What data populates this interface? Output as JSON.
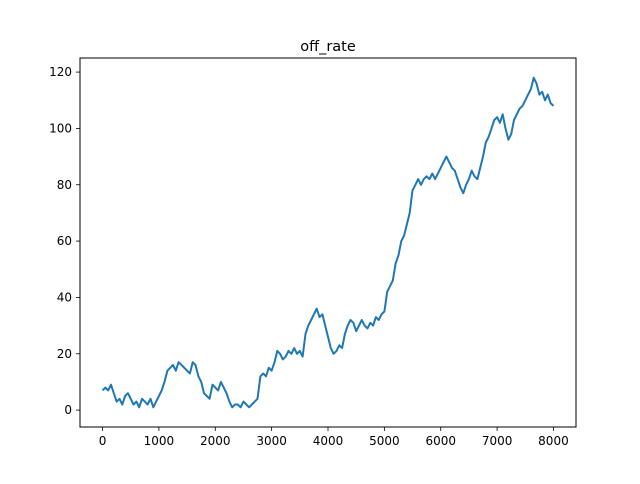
{
  "chart_data": {
    "type": "line",
    "title": "off_rate",
    "xlabel": "",
    "ylabel": "",
    "xlim": [
      -400,
      8400
    ],
    "ylim": [
      -6,
      125
    ],
    "x_ticks": [
      0,
      1000,
      2000,
      3000,
      4000,
      5000,
      6000,
      7000,
      8000
    ],
    "y_ticks": [
      0,
      20,
      40,
      60,
      80,
      100,
      120
    ],
    "x_tick_labels": [
      "0",
      "1000",
      "2000",
      "3000",
      "4000",
      "5000",
      "6000",
      "7000",
      "8000"
    ],
    "y_tick_labels": [
      "0",
      "20",
      "40",
      "60",
      "80",
      "100",
      "120"
    ],
    "grid": false,
    "legend": "none",
    "series": [
      {
        "color": "#1f77b4",
        "x": [
          0,
          50,
          100,
          150,
          200,
          250,
          300,
          350,
          400,
          450,
          500,
          550,
          600,
          650,
          700,
          750,
          800,
          850,
          900,
          950,
          1000,
          1050,
          1100,
          1150,
          1200,
          1250,
          1300,
          1350,
          1400,
          1450,
          1500,
          1550,
          1600,
          1650,
          1700,
          1750,
          1800,
          1850,
          1900,
          1950,
          2000,
          2050,
          2100,
          2150,
          2200,
          2250,
          2300,
          2350,
          2400,
          2450,
          2500,
          2550,
          2600,
          2650,
          2700,
          2750,
          2800,
          2850,
          2900,
          2950,
          3000,
          3050,
          3100,
          3150,
          3200,
          3250,
          3300,
          3350,
          3400,
          3450,
          3500,
          3550,
          3600,
          3650,
          3700,
          3750,
          3800,
          3850,
          3900,
          3950,
          4000,
          4050,
          4100,
          4150,
          4200,
          4250,
          4300,
          4350,
          4400,
          4450,
          4500,
          4550,
          4600,
          4650,
          4700,
          4750,
          4800,
          4850,
          4900,
          4950,
          5000,
          5050,
          5100,
          5150,
          5200,
          5250,
          5300,
          5350,
          5400,
          5450,
          5500,
          5550,
          5600,
          5650,
          5700,
          5750,
          5800,
          5850,
          5900,
          5950,
          6000,
          6050,
          6100,
          6150,
          6200,
          6250,
          6300,
          6350,
          6400,
          6450,
          6500,
          6550,
          6600,
          6650,
          6700,
          6750,
          6800,
          6850,
          6900,
          6950,
          7000,
          7050,
          7100,
          7150,
          7200,
          7250,
          7300,
          7350,
          7400,
          7450,
          7500,
          7550,
          7600,
          7650,
          7700,
          7750,
          7800,
          7850,
          7900,
          7950,
          8000
        ],
        "values": [
          7,
          8,
          7,
          9,
          6,
          3,
          4,
          2,
          5,
          6,
          4,
          2,
          3,
          1,
          4,
          3,
          2,
          4,
          1,
          3,
          5,
          7,
          10,
          14,
          15,
          16,
          14,
          17,
          16,
          15,
          14,
          13,
          17,
          16,
          12,
          10,
          6,
          5,
          4,
          9,
          8,
          7,
          10,
          8,
          6,
          3,
          1,
          2,
          2,
          1,
          3,
          2,
          1,
          2,
          3,
          4,
          12,
          13,
          12,
          15,
          14,
          17,
          21,
          20,
          18,
          19,
          21,
          20,
          22,
          20,
          21,
          19,
          27,
          30,
          32,
          34,
          36,
          33,
          34,
          30,
          26,
          22,
          20,
          21,
          23,
          22,
          27,
          30,
          32,
          31,
          28,
          30,
          32,
          30,
          29,
          31,
          30,
          33,
          32,
          34,
          35,
          42,
          44,
          46,
          52,
          55,
          60,
          62,
          66,
          70,
          78,
          80,
          82,
          80,
          82,
          83,
          82,
          84,
          82,
          84,
          86,
          88,
          90,
          88,
          86,
          85,
          82,
          79,
          77,
          80,
          82,
          85,
          83,
          82,
          86,
          90,
          95,
          97,
          100,
          103,
          104,
          102,
          105,
          100,
          96,
          98,
          103,
          105,
          107,
          108,
          110,
          112,
          114,
          118,
          116,
          112,
          113,
          110,
          112,
          109,
          108
        ]
      }
    ]
  }
}
